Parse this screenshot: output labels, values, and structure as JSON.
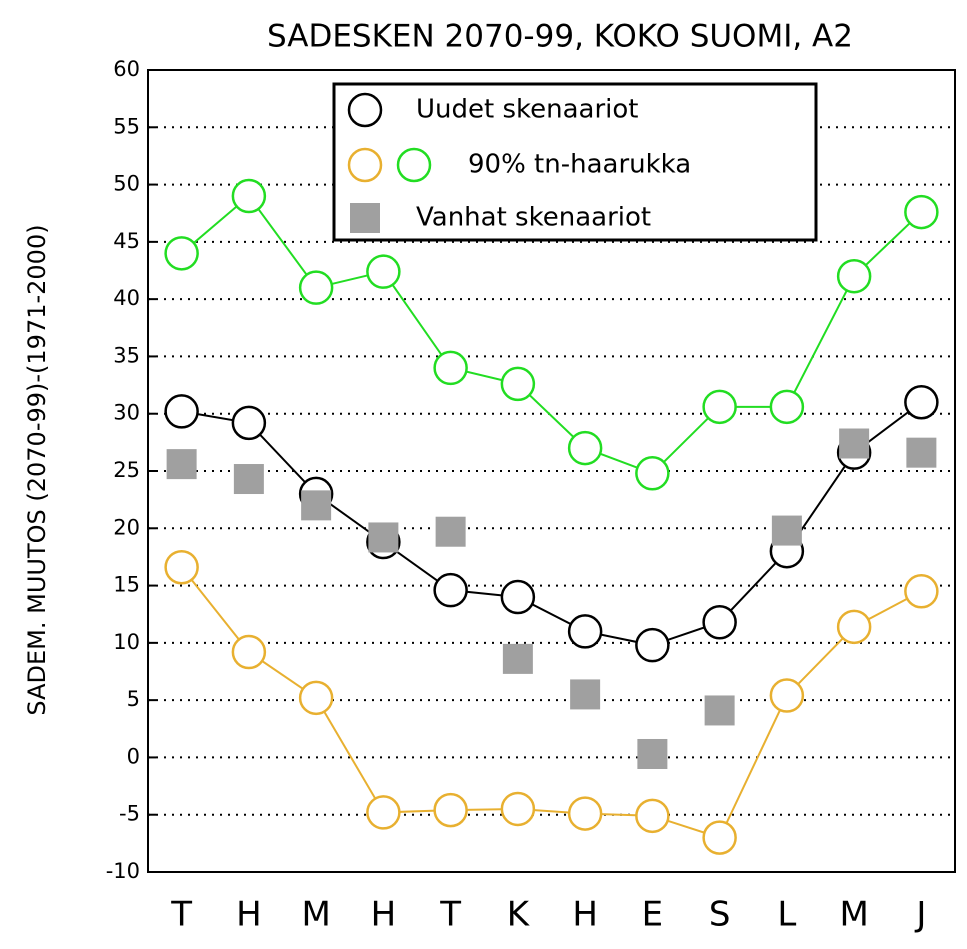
{
  "chart_data": {
    "type": "line",
    "title": "SADESKEN 2070-99, KOKO SUOMI, A2",
    "y_label": "SADEM. MUUTOS (2070-99)-(1971-2000)",
    "categories": [
      "T",
      "H",
      "M",
      "H",
      "T",
      "K",
      "H",
      "E",
      "S",
      "L",
      "M",
      "J"
    ],
    "ylim": [
      -10,
      60
    ],
    "yticks": [
      -10,
      -5,
      0,
      5,
      10,
      15,
      20,
      25,
      30,
      35,
      40,
      45,
      50,
      55,
      60
    ],
    "grid": true,
    "legend": "top",
    "series": [
      {
        "name": "Uudet skenaariot",
        "color": "#000000",
        "marker": "circle",
        "values": [
          30.2,
          29.2,
          23,
          18.8,
          14.6,
          14,
          11,
          9.8,
          11.8,
          18,
          26.6,
          31
        ]
      },
      {
        "name": "90% tn-haarukka",
        "color": "#e8b030",
        "marker": "circle",
        "values": [
          16.6,
          9.2,
          5.2,
          -4.8,
          -4.6,
          -4.5,
          -4.9,
          -5.1,
          -7,
          5.4,
          11.4,
          14.5
        ]
      },
      {
        "color": "#22dd22",
        "marker": "circle",
        "values": [
          44,
          49,
          41,
          42.4,
          34,
          32.6,
          27,
          24.8,
          30.6,
          30.6,
          42,
          47.6
        ]
      },
      {
        "name": "Vanhat skenaariot",
        "color": "#a0a0a0",
        "marker": "square",
        "values": [
          25.6,
          24.3,
          22,
          19.2,
          19.7,
          8.6,
          5.5,
          0.3,
          4.1,
          19.8,
          27.4,
          26.6
        ]
      }
    ]
  }
}
